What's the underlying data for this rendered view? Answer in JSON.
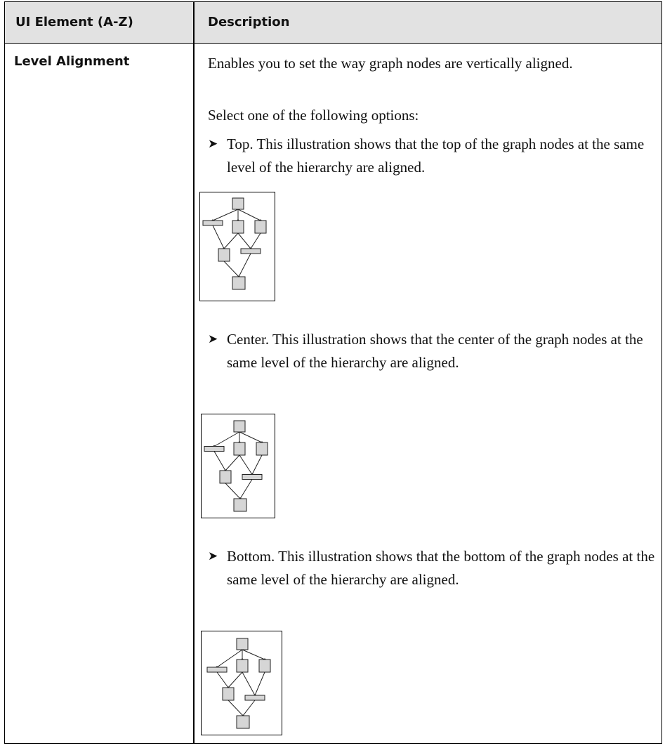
{
  "table": {
    "header": [
      "UI Element (A-Z)",
      "Description"
    ],
    "rows": [
      {
        "element": "Level Alignment",
        "description": {
          "intro": "Enables you to set the way graph nodes are vertically aligned.",
          "prompt": "Select one of the following options:",
          "options": [
            "Top. This illustration shows that the top of the graph nodes at the same level of the hierarchy are aligned.",
            "Center. This illustration shows that the center of the graph nodes at the same level of the hierarchy are aligned.",
            "Bottom. This illustration shows that the bottom of the graph nodes at the same level of the hierarchy are aligned."
          ]
        }
      }
    ]
  }
}
